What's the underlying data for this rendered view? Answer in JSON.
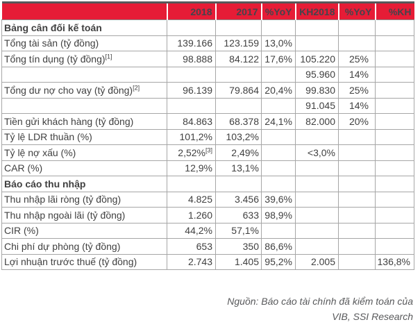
{
  "table": {
    "columns": [
      "",
      "2018",
      "2017",
      "%YoY",
      "KH2018",
      "%YoY",
      "%KH"
    ],
    "rows": [
      {
        "label": "Bảng cân đối kế toán",
        "section": true,
        "cells": [
          "",
          "",
          "",
          "",
          "",
          ""
        ]
      },
      {
        "label": "Tổng tài sản (tỷ đồng)",
        "cells": [
          "139.166",
          "123.159",
          "13,0%",
          "",
          "",
          ""
        ]
      },
      {
        "label": "Tổng tín dụng (tỷ đồng)",
        "label_sup": "[1]",
        "cells": [
          "98.888",
          "84.122",
          "17,6%",
          "105.220",
          "25%",
          ""
        ]
      },
      {
        "label": "",
        "cells": [
          "",
          "",
          "",
          "95.960",
          "14%",
          ""
        ]
      },
      {
        "label": "Tổng dư nợ cho vay (tỷ đồng)",
        "label_sup": "[2]",
        "cells": [
          "96.139",
          "79.864",
          "20,4%",
          "99.830",
          "25%",
          ""
        ]
      },
      {
        "label": "",
        "cells": [
          "",
          "",
          "",
          "91.045",
          "14%",
          ""
        ]
      },
      {
        "label": "Tiền gửi khách hàng (tỷ đồng)",
        "cells": [
          "84.863",
          "68.378",
          "24,1%",
          "82.000",
          "20%",
          ""
        ]
      },
      {
        "label": "Tỷ lệ LDR thuần (%)",
        "cells": [
          "101,2%",
          "103,2%",
          "",
          "",
          "",
          ""
        ]
      },
      {
        "label": "Tỷ lệ nợ xấu (%)",
        "cells": [
          "2,52%",
          "2,49%",
          "",
          "<3,0%",
          "",
          ""
        ],
        "cells_sup": [
          "[3]",
          "",
          "",
          "",
          "",
          ""
        ]
      },
      {
        "label": "CAR (%)",
        "cells": [
          "12,9%",
          "13,1%",
          "",
          "",
          "",
          ""
        ]
      },
      {
        "label": "Báo cáo thu nhập",
        "section": true,
        "cells": [
          "",
          "",
          "",
          "",
          "",
          ""
        ]
      },
      {
        "label": "Thu nhập lãi ròng (tỷ đồng)",
        "cells": [
          "4.825",
          "3.456",
          "39,6%",
          "",
          "",
          ""
        ]
      },
      {
        "label": "Thu nhập ngoài lãi (tỷ đồng)",
        "cells": [
          "1.260",
          "633",
          "98,9%",
          "",
          "",
          ""
        ]
      },
      {
        "label": "CIR (%)",
        "cells": [
          "44,2%",
          "57,1%",
          "",
          "",
          "",
          ""
        ]
      },
      {
        "label": "Chi phí dự phòng (tỷ đồng)",
        "cells": [
          "653",
          "350",
          "86,6%",
          "",
          "",
          ""
        ]
      },
      {
        "label": "Lợi nhuận trước thuế (tỷ đồng)",
        "cells": [
          "2.743",
          "1.405",
          "95,2%",
          "2.005",
          "",
          "136,8%"
        ]
      }
    ],
    "column_keys": [
      "2018",
      "2017",
      "yoy",
      "kh2018",
      "yoy-plan",
      "kh"
    ]
  },
  "source_note": {
    "line1": "Nguồn: Báo cáo tài chính đã kiểm toán của",
    "line2": "VIB, SSI Research"
  },
  "colors": {
    "header_bg": "#e61c36",
    "header_text": "#44444c",
    "body_text": "#404040",
    "border": "#a6a6a6",
    "top_border": "#57585a",
    "source_text": "#58595b"
  }
}
